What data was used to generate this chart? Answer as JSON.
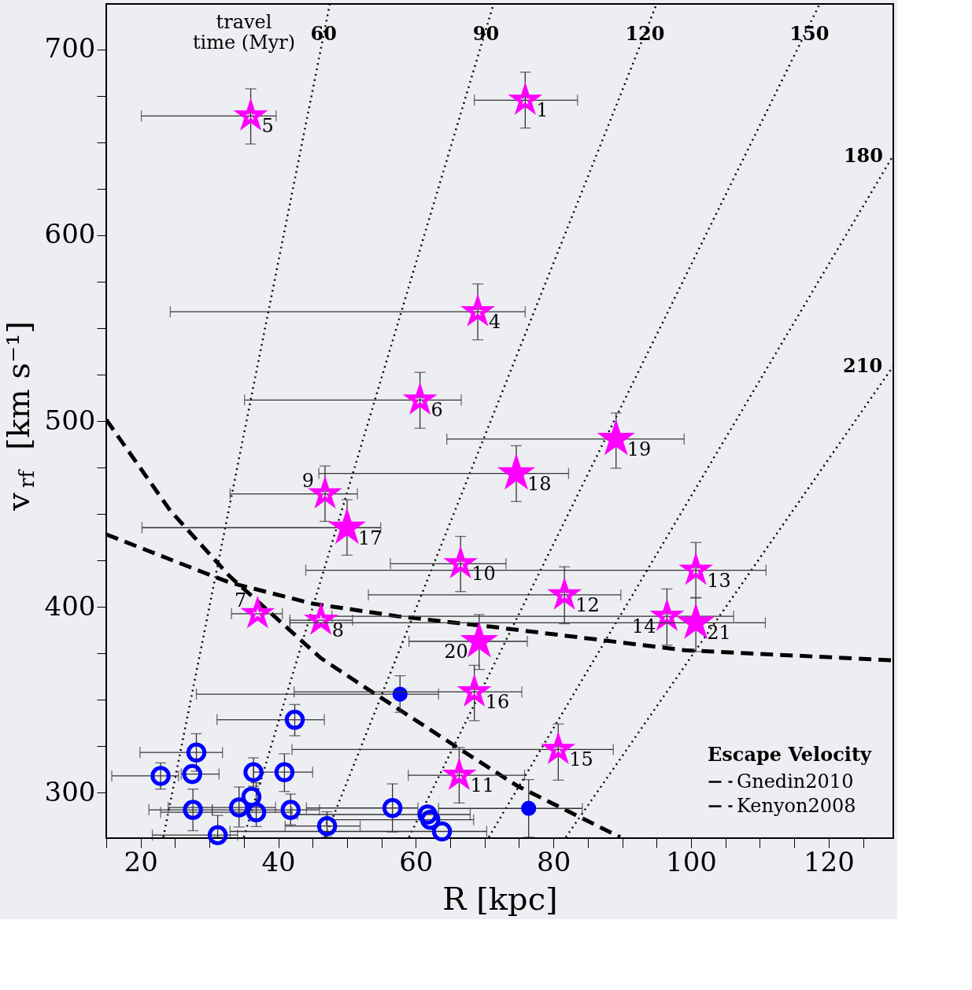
{
  "chart_data": {
    "type": "scatter",
    "xlabel": "R [kpc]",
    "ylabel": "v$_{rf}$ [km s⁻¹]",
    "legend_title": "Escape Velocity",
    "legend": "bottom right",
    "grid": false,
    "xlim": [
      15,
      129.4
    ],
    "ylim": [
      275.5,
      724.5
    ],
    "xticks": [
      {
        "value": 15,
        "label": null
      },
      20,
      {
        "value": 25,
        "label": null
      },
      {
        "value": 30,
        "label": null
      },
      {
        "value": 35,
        "label": null
      },
      40,
      {
        "value": 45,
        "label": null
      },
      {
        "value": 50,
        "label": null
      },
      {
        "value": 55,
        "label": null
      },
      60,
      {
        "value": 65,
        "label": null
      },
      {
        "value": 70,
        "label": null
      },
      {
        "value": 75,
        "label": null
      },
      80,
      {
        "value": 85,
        "label": null
      },
      {
        "value": 90,
        "label": null
      },
      {
        "value": 95,
        "label": null
      },
      100,
      {
        "value": 105,
        "label": null
      },
      {
        "value": 110,
        "label": null
      },
      {
        "value": 115,
        "label": null
      },
      120,
      {
        "value": 125,
        "label": null
      }
    ],
    "yticks": [
      300,
      {
        "value": 325,
        "label": null
      },
      {
        "value": 350,
        "label": null
      },
      {
        "value": 375,
        "label": null
      },
      400,
      {
        "value": 425,
        "label": null
      },
      {
        "value": 450,
        "label": null
      },
      {
        "value": 475,
        "label": null
      },
      500,
      {
        "value": 525,
        "label": null
      },
      {
        "value": 550,
        "label": null
      },
      {
        "value": 575,
        "label": null
      },
      600,
      {
        "value": 625,
        "label": null
      },
      {
        "value": 650,
        "label": null
      },
      {
        "value": 675,
        "label": null
      },
      700
    ],
    "series": [
      {
        "type": "line",
        "color": "#000000",
        "line_style": "dotted",
        "marker": "none",
        "x": [
          23.3,
          47.5
        ],
        "values": [
          276,
          724.5
        ]
      },
      {
        "type": "line",
        "color": "#000000",
        "line_style": "dotted",
        "marker": "none",
        "x": [
          35.0,
          71.3
        ],
        "values": [
          276,
          724.5
        ]
      },
      {
        "type": "line",
        "color": "#000000",
        "line_style": "dotted",
        "marker": "none",
        "x": [
          46.8,
          95.0
        ],
        "values": [
          276,
          724.5
        ]
      },
      {
        "type": "line",
        "color": "#000000",
        "line_style": "dotted",
        "marker": "none",
        "x": [
          59.0,
          118.7
        ],
        "values": [
          276,
          724.5
        ]
      },
      {
        "type": "line",
        "color": "#000000",
        "line_style": "dotted",
        "marker": "none",
        "x": [
          70.6,
          129.4
        ],
        "values": [
          276,
          643
        ]
      },
      {
        "type": "line",
        "color": "#000000",
        "line_style": "dotted",
        "marker": "none",
        "x": [
          81.8,
          129.4
        ],
        "values": [
          276,
          529.6
        ]
      },
      {
        "type": "line",
        "name": "Gnedin2010",
        "color": "#000000",
        "line_style": "dashed",
        "marker": "none",
        "x": [
          15,
          27.2,
          32.9,
          45,
          57.4,
          70.9,
          85,
          99.1,
          129.4
        ],
        "values": [
          439,
          421.3,
          413.1,
          401.7,
          394.9,
          389.3,
          383,
          376.6,
          371.2
        ]
      },
      {
        "type": "line",
        "name": "Kenyon2008",
        "color": "#000000",
        "line_style": "dashed",
        "marker": "none",
        "x": [
          15,
          24.3,
          32.9,
          46.2,
          51.9,
          67.0,
          74.7,
          89.7
        ],
        "values": [
          500.8,
          451.8,
          416.6,
          372.4,
          358.4,
          322.0,
          303.7,
          276
        ]
      },
      {
        "color": "#0000ff",
        "marker": "circle",
        "x": [
          42.4,
          28.1,
          22.9,
          27.5,
          36.4,
          40.9,
          27.6,
          34.3,
          36.1,
          36.8,
          41.8,
          47.1,
          31.2,
          56.6,
          61.7,
          62.1,
          63.8
        ],
        "values": [
          339.2,
          321.6,
          309.0,
          310.0,
          311.0,
          311.0,
          290.7,
          292.0,
          297.7,
          289.4,
          290.7,
          282.0,
          277.1,
          291.7,
          288.2,
          285.4,
          279.1
        ],
        "xerrors": [
          [
            31.1,
            46.7
          ],
          [
            19.9,
            31.9
          ],
          [
            15.8,
            25.5
          ],
          [
            25.9,
            31.4
          ],
          null,
          [
            36.4,
            45.0
          ],
          [
            21.2,
            30.4
          ],
          [
            24.0,
            39.6
          ],
          null,
          [
            22.9,
            42.0
          ],
          [
            30.4,
            46.0
          ],
          [
            41.0,
            51.9
          ],
          [
            21.7,
            34.1
          ],
          [
            44.1,
            60.3
          ],
          [
            42.8,
            67.9
          ],
          [
            47.0,
            68.4
          ],
          [
            33.0,
            70.3
          ]
        ],
        "errors": [
          [
            330.6,
            347.4
          ],
          [
            311.5,
            331.7
          ],
          [
            301.9,
            316.0
          ],
          null,
          [
            303.4,
            318.7
          ],
          [
            300.6,
            320.9
          ],
          [
            279.5,
            301.9
          ],
          [
            281.5,
            303.0
          ],
          null,
          [
            281.7,
            305.3
          ],
          [
            282.7,
            299.2
          ],
          [
            276.0,
            289.7
          ],
          [
            276.0,
            287.7
          ],
          [
            278.8,
            304.7
          ],
          null,
          null,
          null
        ]
      },
      {
        "type": "bubble",
        "color": "#0000ff",
        "marker": "circle",
        "x": [
          57.7,
          76.4
        ],
        "values": [
          353.0,
          291.5
        ],
        "sizes": [
          0.4,
          0.4
        ],
        "xerrors": [
          [
            28.1,
            63.3
          ],
          [
            63.3,
            84.2
          ]
        ],
        "errors": [
          [
            343.2,
            362.9
          ],
          [
            276.0,
            307.0
          ]
        ]
      },
      {
        "color": "#ff00ff",
        "marker": "star",
        "x": [
          75.9,
          69.0,
          36.0,
          60.6,
          37.0,
          46.2,
          46.8,
          66.5,
          66.3,
          81.6,
          100.7,
          96.5,
          80.7,
          68.5
        ],
        "values": [
          672.7,
          558.8,
          664.2,
          511.3,
          396.3,
          392.8,
          460.8,
          423.2,
          309.3,
          406.4,
          419.7,
          394.9,
          323.2,
          354.2
        ],
        "xerrors": [
          [
            68.5,
            83.5
          ],
          [
            24.3,
            75.9
          ],
          [
            20.1,
            39.7
          ],
          [
            35.1,
            66.6
          ],
          [
            33.2,
            40.6
          ],
          [
            41.7,
            50.8
          ],
          [
            33.0,
            51.5
          ],
          [
            56.3,
            73.1
          ],
          [
            58.9,
            75.8
          ],
          [
            53.1,
            89.8
          ],
          [
            44.0,
            110.9
          ],
          [
            47.8,
            106.2
          ],
          [
            42.0,
            88.7
          ],
          [
            42.3,
            75.4
          ]
        ],
        "errors": [
          [
            657.7,
            687.8
          ],
          [
            543.7,
            573.8
          ],
          [
            649.1,
            678.8
          ],
          [
            496.1,
            526.2
          ],
          null,
          null,
          [
            446.0,
            475.8
          ],
          [
            408.2,
            437.9
          ],
          [
            294.4,
            324.3
          ],
          [
            390.9,
            421.5
          ],
          [
            404.7,
            434.6
          ],
          [
            379.4,
            409.6
          ],
          [
            306.7,
            336.9
          ],
          [
            338.7,
            368.5
          ]
        ]
      },
      {
        "type": "bubble",
        "color": "#ff00ff",
        "marker": "star",
        "x": [
          50.0,
          74.6,
          89.1,
          69.2,
          100.7
        ],
        "values": [
          442.6,
          471.8,
          490.3,
          381.4,
          391.4
        ],
        "sizes": [
          1,
          1,
          1,
          1,
          1
        ],
        "xerrors": [
          [
            20.2,
            54.9
          ],
          [
            45.9,
            82.2
          ],
          [
            64.5,
            99.0
          ],
          [
            59.0,
            76.2
          ],
          [
            41.7,
            110.8
          ]
        ],
        "errors": [
          [
            427.8,
            457.6
          ],
          [
            456.7,
            486.7
          ],
          [
            474.6,
            504.3
          ],
          [
            366.3,
            395.8
          ],
          [
            375.9,
            405.0
          ]
        ]
      }
    ],
    "annotations": [
      "travel time (Myr)",
      {
        "text": "60",
        "x": 46.6,
        "y": 708
      },
      {
        "text": "90",
        "x": 70.2,
        "y": 708
      },
      {
        "text": "120",
        "x": 93.3,
        "y": 708
      },
      {
        "text": "150",
        "x": 117.2,
        "y": 708
      },
      {
        "text": "180",
        "x": 128.6,
        "y": 638
      },
      {
        "text": "210",
        "x": 128.5,
        "y": 525
      },
      {
        "text": "1",
        "x": 75.9,
        "y": 672.7
      },
      {
        "text": "4",
        "x": 69.0,
        "y": 558.8
      },
      {
        "text": "5",
        "x": 36.0,
        "y": 664.2
      },
      {
        "text": "6",
        "x": 60.6,
        "y": 511.3
      },
      {
        "text": "7",
        "x": 37.0,
        "y": 396.3
      },
      {
        "text": "8",
        "x": 46.2,
        "y": 392.8
      },
      {
        "text": "9",
        "x": 46.8,
        "y": 460.8
      },
      {
        "text": "10",
        "x": 66.5,
        "y": 423.2
      },
      {
        "text": "11",
        "x": 66.3,
        "y": 309.3
      },
      {
        "text": "12",
        "x": 81.6,
        "y": 406.4
      },
      {
        "text": "13",
        "x": 100.7,
        "y": 419.7
      },
      {
        "text": "14",
        "x": 96.5,
        "y": 394.9
      },
      {
        "text": "15",
        "x": 80.7,
        "y": 323.2
      },
      {
        "text": "16",
        "x": 68.5,
        "y": 354.2
      },
      {
        "text": "17",
        "x": 50.0,
        "y": 442.6
      },
      {
        "text": "18",
        "x": 74.6,
        "y": 471.8
      },
      {
        "text": "19",
        "x": 89.1,
        "y": 490.3
      },
      {
        "text": "20",
        "x": 69.2,
        "y": 381.4
      },
      {
        "text": "21",
        "x": 100.7,
        "y": 391.4
      }
    ]
  }
}
